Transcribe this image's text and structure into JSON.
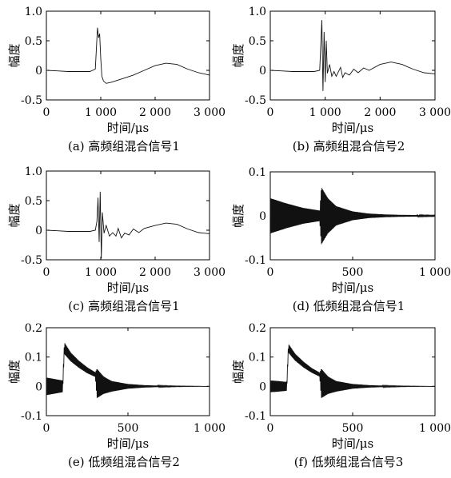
{
  "chart_data": [
    {
      "type": "line",
      "caption": "(a) 高频组混合信号1",
      "xlabel": "时间/μs",
      "ylabel": "幅度",
      "xlim": [
        0,
        3000
      ],
      "ylim": [
        -0.5,
        1.0
      ],
      "xticks": [
        0,
        1000,
        2000,
        3000
      ],
      "xtick_labels": [
        "0",
        "1 000",
        "2 000",
        "3 000"
      ],
      "yticks": [
        1.0,
        0.5,
        0,
        -0.5
      ],
      "ytick_labels": [
        "1.0",
        "0.5",
        "0",
        "-0.5"
      ],
      "x": [
        0,
        200,
        400,
        600,
        800,
        900,
        940,
        960,
        980,
        1000,
        1020,
        1050,
        1100,
        1200,
        1400,
        1600,
        1800,
        2000,
        2200,
        2400,
        2600,
        2800,
        3000
      ],
      "y": [
        0.0,
        -0.01,
        -0.02,
        -0.02,
        -0.02,
        0.02,
        0.72,
        0.55,
        0.62,
        0.2,
        -0.1,
        -0.18,
        -0.22,
        -0.2,
        -0.14,
        -0.08,
        0.0,
        0.08,
        0.12,
        0.1,
        0.02,
        -0.04,
        -0.08
      ]
    },
    {
      "type": "line",
      "caption": "(b) 高频组混合信号2",
      "xlabel": "时间/μs",
      "ylabel": "幅度",
      "xlim": [
        0,
        3000
      ],
      "ylim": [
        -0.5,
        1.0
      ],
      "xticks": [
        0,
        1000,
        2000,
        3000
      ],
      "xtick_labels": [
        "0",
        "1 000",
        "2 000",
        "3 000"
      ],
      "yticks": [
        1.0,
        0.5,
        0,
        -0.5
      ],
      "ytick_labels": [
        "1.0",
        "0.5",
        "0",
        "-0.5"
      ],
      "x": [
        0,
        200,
        400,
        600,
        800,
        900,
        940,
        960,
        980,
        1000,
        1020,
        1040,
        1080,
        1120,
        1160,
        1200,
        1280,
        1320,
        1360,
        1440,
        1520,
        1600,
        1700,
        1800,
        2000,
        2200,
        2400,
        2600,
        2800,
        3000
      ],
      "y": [
        0.0,
        -0.01,
        -0.02,
        -0.02,
        -0.02,
        0.0,
        0.85,
        -0.35,
        0.65,
        -0.2,
        0.5,
        -0.05,
        0.1,
        -0.1,
        -0.02,
        -0.1,
        0.05,
        -0.12,
        -0.04,
        -0.08,
        0.02,
        -0.04,
        0.04,
        0.0,
        0.1,
        0.14,
        0.1,
        0.02,
        -0.04,
        -0.06
      ]
    },
    {
      "type": "line",
      "caption": "(c) 高频组混合信号1",
      "xlabel": "时间/μs",
      "ylabel": "幅度",
      "xlim": [
        0,
        3000
      ],
      "ylim": [
        -0.5,
        1.0
      ],
      "xticks": [
        0,
        1000,
        2000,
        3000
      ],
      "xtick_labels": [
        "0",
        "1 000",
        "2 000",
        "3 000"
      ],
      "yticks": [
        1.0,
        0.5,
        0,
        -0.5
      ],
      "ytick_labels": [
        "1.0",
        "0.5",
        "0",
        "-0.5"
      ],
      "x": [
        0,
        200,
        400,
        600,
        800,
        900,
        930,
        950,
        970,
        990,
        1010,
        1030,
        1060,
        1100,
        1160,
        1220,
        1280,
        1320,
        1380,
        1440,
        1520,
        1600,
        1700,
        1800,
        2000,
        2200,
        2400,
        2600,
        2800,
        3000
      ],
      "y": [
        0.0,
        -0.01,
        -0.02,
        -0.02,
        -0.02,
        0.0,
        0.15,
        0.55,
        -0.2,
        0.65,
        -0.48,
        0.3,
        -0.05,
        0.08,
        -0.1,
        -0.04,
        -0.1,
        0.03,
        -0.13,
        -0.05,
        -0.08,
        0.02,
        -0.04,
        0.03,
        0.08,
        0.12,
        0.1,
        0.02,
        -0.04,
        -0.06
      ]
    },
    {
      "type": "line",
      "caption": "(d) 低频组混合信号1",
      "xlabel": "时间/μs",
      "ylabel": "幅度",
      "xlim": [
        0,
        1000
      ],
      "ylim": [
        -0.1,
        0.1
      ],
      "xticks": [
        0,
        500,
        1000
      ],
      "xtick_labels": [
        "0",
        "500",
        "1 000"
      ],
      "yticks": [
        0.1,
        0,
        -0.1
      ],
      "ytick_labels": [
        "0.1",
        "0",
        "-0.1"
      ],
      "x": [
        0,
        100,
        200,
        300,
        310,
        350,
        400,
        500,
        600,
        700,
        800,
        1000
      ],
      "y_envelope": [
        0.04,
        0.028,
        0.018,
        0.012,
        0.065,
        0.04,
        0.022,
        0.01,
        0.005,
        0.003,
        0.002,
        0.001
      ],
      "y_baseline": [
        0,
        0,
        0,
        0,
        0,
        0,
        0,
        0,
        0,
        0,
        0,
        0
      ]
    },
    {
      "type": "line",
      "caption": "(e) 低频组混合信号2",
      "xlabel": "时间/μs",
      "ylabel": "幅度",
      "xlim": [
        0,
        1000
      ],
      "ylim": [
        -0.1,
        0.2
      ],
      "xticks": [
        0,
        500,
        1000
      ],
      "xtick_labels": [
        "0",
        "500",
        "1 000"
      ],
      "yticks": [
        0.2,
        0.1,
        0,
        -0.1
      ],
      "ytick_labels": [
        "0.2",
        "0.1",
        "0",
        "-0.1"
      ],
      "x": [
        0,
        50,
        100,
        110,
        150,
        200,
        250,
        300,
        310,
        350,
        400,
        500,
        600,
        700,
        800,
        1000
      ],
      "y_envelope": [
        0.03,
        0.025,
        0.02,
        0.02,
        0.015,
        0.012,
        0.01,
        0.008,
        0.05,
        0.03,
        0.018,
        0.008,
        0.004,
        0.002,
        0.001,
        0.0
      ],
      "y_baseline": [
        0.0,
        0.0,
        0.0,
        0.13,
        0.1,
        0.075,
        0.055,
        0.04,
        0.01,
        0.004,
        0.0,
        0.0,
        0.0,
        0.0,
        0.0,
        0.0
      ]
    },
    {
      "type": "line",
      "caption": "(f) 低频组混合信号3",
      "xlabel": "时间/μs",
      "ylabel": "幅度",
      "xlim": [
        0,
        1000
      ],
      "ylim": [
        -0.1,
        0.2
      ],
      "xticks": [
        0,
        500,
        1000
      ],
      "xtick_labels": [
        "0",
        "500",
        "1 000"
      ],
      "yticks": [
        0.2,
        0.1,
        0,
        -0.1
      ],
      "ytick_labels": [
        "0.2",
        "0.1",
        "0",
        "-0.1"
      ],
      "x": [
        0,
        50,
        100,
        110,
        150,
        200,
        250,
        300,
        310,
        350,
        400,
        500,
        600,
        700,
        800,
        1000
      ],
      "y_envelope": [
        0.02,
        0.018,
        0.015,
        0.015,
        0.012,
        0.01,
        0.008,
        0.007,
        0.05,
        0.03,
        0.018,
        0.008,
        0.004,
        0.002,
        0.001,
        0.0
      ],
      "y_baseline": [
        0.0,
        0.0,
        0.0,
        0.13,
        0.1,
        0.075,
        0.055,
        0.04,
        0.01,
        0.004,
        0.0,
        0.0,
        0.0,
        0.0,
        0.0,
        0.0
      ]
    }
  ]
}
